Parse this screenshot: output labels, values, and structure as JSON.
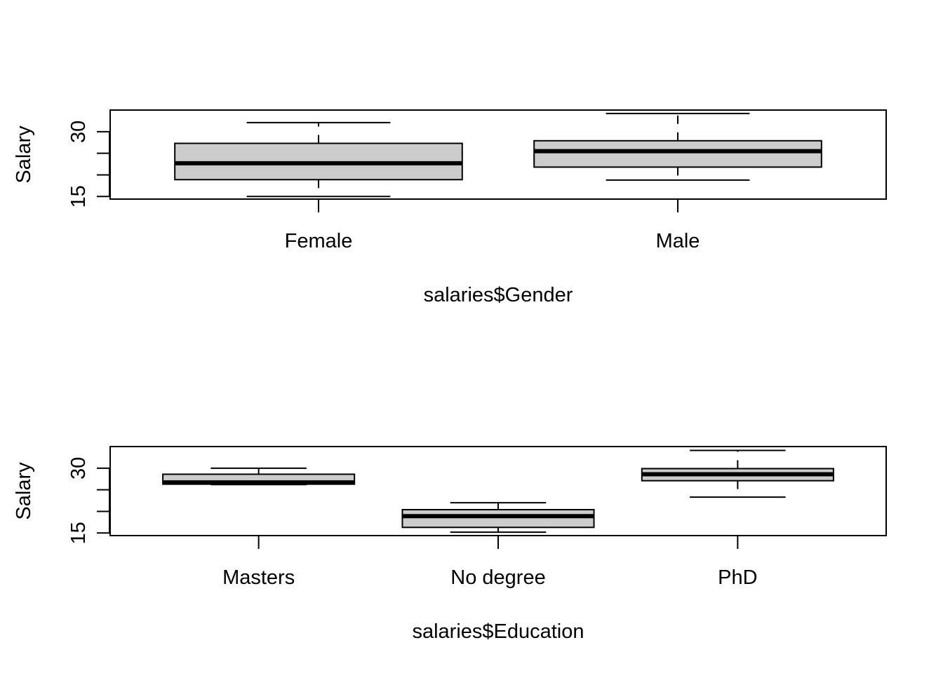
{
  "chart_data": [
    {
      "type": "boxplot",
      "xlabel": "salaries$Gender",
      "ylabel": "Salary",
      "categories": [
        "Female",
        "Male"
      ],
      "boxes": [
        {
          "name": "Female",
          "min": 15,
          "q1": 18.9,
          "median": 22.7,
          "q3": 27.3,
          "max": 32.1
        },
        {
          "name": "Male",
          "min": 18.8,
          "q1": 21.8,
          "median": 25.5,
          "q3": 27.9,
          "max": 34.2
        }
      ],
      "yticks": [
        15,
        20,
        25,
        30
      ],
      "ytick_labels": [
        "15",
        "",
        "",
        "30"
      ],
      "ylim": [
        14.4,
        35
      ],
      "box_color": "#cccccc"
    },
    {
      "type": "boxplot",
      "xlabel": "salaries$Education",
      "ylabel": "Salary",
      "categories": [
        "Masters",
        "No degree",
        "PhD"
      ],
      "boxes": [
        {
          "name": "Masters",
          "min": 26.2,
          "q1": 26.3,
          "median": 26.7,
          "q3": 28.6,
          "max": 30
        },
        {
          "name": "No degree",
          "min": 15.2,
          "q1": 16.3,
          "median": 18.9,
          "q3": 20.4,
          "max": 22
        },
        {
          "name": "PhD",
          "min": 23.3,
          "q1": 27.1,
          "median": 28.6,
          "q3": 29.9,
          "max": 34.1
        }
      ],
      "yticks": [
        15,
        20,
        25,
        30
      ],
      "ytick_labels": [
        "15",
        "",
        "",
        "30"
      ],
      "ylim": [
        14.4,
        35
      ],
      "box_color": "#cccccc"
    }
  ]
}
